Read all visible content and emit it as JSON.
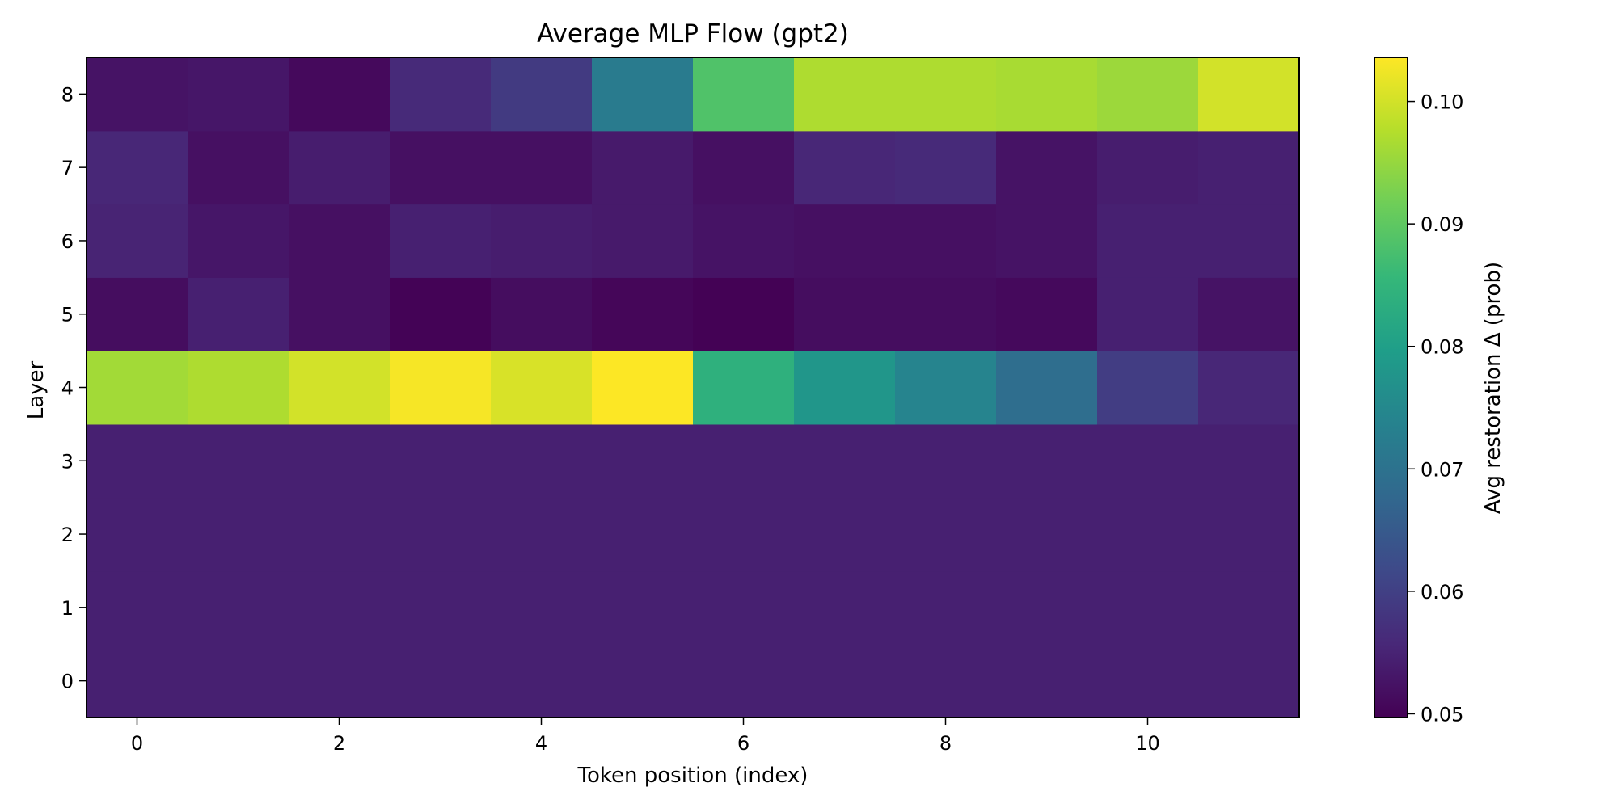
{
  "chart_data": {
    "type": "heatmap",
    "title": "Average MLP Flow (gpt2)",
    "xlabel": "Token position (index)",
    "ylabel": "Layer",
    "x_ticks": [
      0,
      2,
      4,
      6,
      8,
      10
    ],
    "y_ticks": [
      0,
      1,
      2,
      3,
      4,
      5,
      6,
      7,
      8
    ],
    "x_categories": [
      0,
      1,
      2,
      3,
      4,
      5,
      6,
      7,
      8,
      9,
      10,
      11
    ],
    "y_categories": [
      0,
      1,
      2,
      3,
      4,
      5,
      6,
      7,
      8
    ],
    "colorbar": {
      "label": "Avg restoration Δ (prob)",
      "range": [
        0.0497,
        0.1036
      ],
      "ticks": [
        "0.05",
        "0.06",
        "0.07",
        "0.08",
        "0.09",
        "0.10"
      ],
      "colormap": "viridis"
    },
    "values": [
      [
        0.0545,
        0.0545,
        0.0545,
        0.0545,
        0.0545,
        0.0545,
        0.0545,
        0.0545,
        0.0545,
        0.0545,
        0.0545,
        0.0545
      ],
      [
        0.0545,
        0.0545,
        0.0545,
        0.0545,
        0.0545,
        0.0545,
        0.0545,
        0.0545,
        0.0545,
        0.0545,
        0.0545,
        0.0545
      ],
      [
        0.0545,
        0.0545,
        0.0545,
        0.0545,
        0.0545,
        0.0545,
        0.0545,
        0.0545,
        0.0545,
        0.0545,
        0.0545,
        0.0545
      ],
      [
        0.0545,
        0.0545,
        0.0545,
        0.0545,
        0.0545,
        0.0545,
        0.0545,
        0.0545,
        0.0545,
        0.0545,
        0.0545,
        0.0545
      ],
      [
        0.096,
        0.097,
        0.1,
        0.103,
        0.1005,
        0.1035,
        0.084,
        0.078,
        0.074,
        0.069,
        0.0595,
        0.0555
      ],
      [
        0.0515,
        0.0545,
        0.052,
        0.05,
        0.0515,
        0.0505,
        0.0498,
        0.0515,
        0.0515,
        0.051,
        0.0545,
        0.0525
      ],
      [
        0.055,
        0.053,
        0.052,
        0.0545,
        0.054,
        0.0535,
        0.0525,
        0.052,
        0.052,
        0.0525,
        0.0545,
        0.0545
      ],
      [
        0.0555,
        0.052,
        0.054,
        0.052,
        0.052,
        0.0535,
        0.052,
        0.0555,
        0.056,
        0.0525,
        0.054,
        0.0545
      ],
      [
        0.0525,
        0.053,
        0.051,
        0.056,
        0.059,
        0.072,
        0.0885,
        0.097,
        0.097,
        0.0965,
        0.0955,
        0.1
      ]
    ]
  }
}
